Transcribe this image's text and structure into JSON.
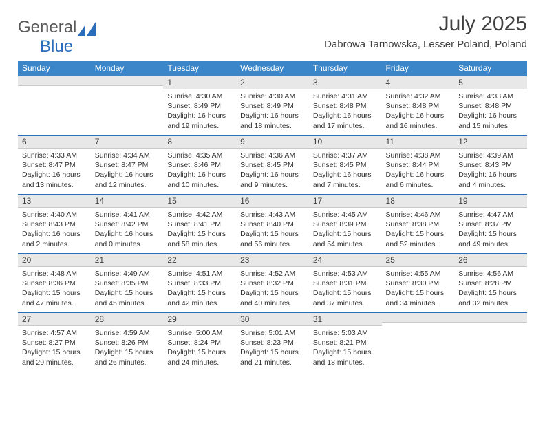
{
  "logo": {
    "general": "General",
    "blue": "Blue"
  },
  "title": "July 2025",
  "subtitle": "Dabrowa Tarnowska, Lesser Poland, Poland",
  "colors": {
    "header_bg": "#3b86c8",
    "header_text": "#ffffff",
    "daynum_bg": "#e8e8e8",
    "border_top": "#2a6ebb",
    "text": "#303030",
    "logo_blue": "#2a6ebb",
    "logo_gray": "#5a5a5a"
  },
  "font_sizes": {
    "month_title": 30,
    "subtitle": 15,
    "weekday": 12,
    "daynum": 12,
    "body": 10.5,
    "logo": 24
  },
  "weekdays": [
    "Sunday",
    "Monday",
    "Tuesday",
    "Wednesday",
    "Thursday",
    "Friday",
    "Saturday"
  ],
  "weeks": [
    [
      null,
      null,
      {
        "n": "1",
        "sr": "4:30 AM",
        "ss": "8:49 PM",
        "dl": "16 hours and 19 minutes."
      },
      {
        "n": "2",
        "sr": "4:30 AM",
        "ss": "8:49 PM",
        "dl": "16 hours and 18 minutes."
      },
      {
        "n": "3",
        "sr": "4:31 AM",
        "ss": "8:48 PM",
        "dl": "16 hours and 17 minutes."
      },
      {
        "n": "4",
        "sr": "4:32 AM",
        "ss": "8:48 PM",
        "dl": "16 hours and 16 minutes."
      },
      {
        "n": "5",
        "sr": "4:33 AM",
        "ss": "8:48 PM",
        "dl": "16 hours and 15 minutes."
      }
    ],
    [
      {
        "n": "6",
        "sr": "4:33 AM",
        "ss": "8:47 PM",
        "dl": "16 hours and 13 minutes."
      },
      {
        "n": "7",
        "sr": "4:34 AM",
        "ss": "8:47 PM",
        "dl": "16 hours and 12 minutes."
      },
      {
        "n": "8",
        "sr": "4:35 AM",
        "ss": "8:46 PM",
        "dl": "16 hours and 10 minutes."
      },
      {
        "n": "9",
        "sr": "4:36 AM",
        "ss": "8:45 PM",
        "dl": "16 hours and 9 minutes."
      },
      {
        "n": "10",
        "sr": "4:37 AM",
        "ss": "8:45 PM",
        "dl": "16 hours and 7 minutes."
      },
      {
        "n": "11",
        "sr": "4:38 AM",
        "ss": "8:44 PM",
        "dl": "16 hours and 6 minutes."
      },
      {
        "n": "12",
        "sr": "4:39 AM",
        "ss": "8:43 PM",
        "dl": "16 hours and 4 minutes."
      }
    ],
    [
      {
        "n": "13",
        "sr": "4:40 AM",
        "ss": "8:43 PM",
        "dl": "16 hours and 2 minutes."
      },
      {
        "n": "14",
        "sr": "4:41 AM",
        "ss": "8:42 PM",
        "dl": "16 hours and 0 minutes."
      },
      {
        "n": "15",
        "sr": "4:42 AM",
        "ss": "8:41 PM",
        "dl": "15 hours and 58 minutes."
      },
      {
        "n": "16",
        "sr": "4:43 AM",
        "ss": "8:40 PM",
        "dl": "15 hours and 56 minutes."
      },
      {
        "n": "17",
        "sr": "4:45 AM",
        "ss": "8:39 PM",
        "dl": "15 hours and 54 minutes."
      },
      {
        "n": "18",
        "sr": "4:46 AM",
        "ss": "8:38 PM",
        "dl": "15 hours and 52 minutes."
      },
      {
        "n": "19",
        "sr": "4:47 AM",
        "ss": "8:37 PM",
        "dl": "15 hours and 49 minutes."
      }
    ],
    [
      {
        "n": "20",
        "sr": "4:48 AM",
        "ss": "8:36 PM",
        "dl": "15 hours and 47 minutes."
      },
      {
        "n": "21",
        "sr": "4:49 AM",
        "ss": "8:35 PM",
        "dl": "15 hours and 45 minutes."
      },
      {
        "n": "22",
        "sr": "4:51 AM",
        "ss": "8:33 PM",
        "dl": "15 hours and 42 minutes."
      },
      {
        "n": "23",
        "sr": "4:52 AM",
        "ss": "8:32 PM",
        "dl": "15 hours and 40 minutes."
      },
      {
        "n": "24",
        "sr": "4:53 AM",
        "ss": "8:31 PM",
        "dl": "15 hours and 37 minutes."
      },
      {
        "n": "25",
        "sr": "4:55 AM",
        "ss": "8:30 PM",
        "dl": "15 hours and 34 minutes."
      },
      {
        "n": "26",
        "sr": "4:56 AM",
        "ss": "8:28 PM",
        "dl": "15 hours and 32 minutes."
      }
    ],
    [
      {
        "n": "27",
        "sr": "4:57 AM",
        "ss": "8:27 PM",
        "dl": "15 hours and 29 minutes."
      },
      {
        "n": "28",
        "sr": "4:59 AM",
        "ss": "8:26 PM",
        "dl": "15 hours and 26 minutes."
      },
      {
        "n": "29",
        "sr": "5:00 AM",
        "ss": "8:24 PM",
        "dl": "15 hours and 24 minutes."
      },
      {
        "n": "30",
        "sr": "5:01 AM",
        "ss": "8:23 PM",
        "dl": "15 hours and 21 minutes."
      },
      {
        "n": "31",
        "sr": "5:03 AM",
        "ss": "8:21 PM",
        "dl": "15 hours and 18 minutes."
      },
      null,
      null
    ]
  ],
  "labels": {
    "sunrise": "Sunrise:",
    "sunset": "Sunset:",
    "daylight": "Daylight:"
  }
}
